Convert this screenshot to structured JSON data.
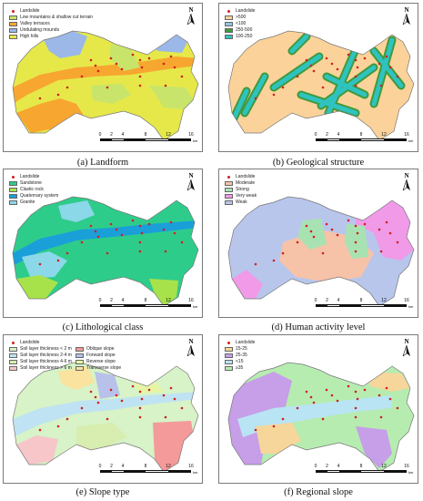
{
  "common": {
    "landslide_label": "Landslide",
    "north_label": "N",
    "scale_ticks": [
      "0",
      "2",
      "4",
      "8",
      "12",
      "16"
    ],
    "scale_unit": "km"
  },
  "panels": [
    {
      "caption": "(a) Landform",
      "legend": [
        {
          "label": "Low mountains & shallow cut terrain",
          "color": "#c8e46a"
        },
        {
          "label": "Valley terraces",
          "color": "#f7a630"
        },
        {
          "label": "Undulating mounds",
          "color": "#9bb8e8"
        },
        {
          "label": "High hills",
          "color": "#e6e84a"
        }
      ],
      "base_color": "#e6e84a"
    },
    {
      "caption": "(b) Geological structure",
      "legend": [
        {
          "label": ">500",
          "color": "#fbd29a"
        },
        {
          "label": "<100",
          "color": "#8ec6e2"
        },
        {
          "label": "250-500",
          "color": "#3f9a3c"
        },
        {
          "label": "100-250",
          "color": "#2fc3c0"
        }
      ],
      "base_color": "#fbd29a"
    },
    {
      "caption": "(c) Lithological class",
      "legend": [
        {
          "label": "Sandstone",
          "color": "#2ecc8a"
        },
        {
          "label": "Clastic rock",
          "color": "#a8e24a"
        },
        {
          "label": "Quaternary system",
          "color": "#1a9fd9"
        },
        {
          "label": "Granite",
          "color": "#8ad8e8"
        }
      ],
      "base_color": "#2ecc8a"
    },
    {
      "caption": "(d) Human activity level",
      "legend": [
        {
          "label": "Moderate",
          "color": "#f6c2a8"
        },
        {
          "label": "Strong",
          "color": "#a8e2b2"
        },
        {
          "label": "Very weak",
          "color": "#f09ae8"
        },
        {
          "label": "Weak",
          "color": "#b8c6ec"
        }
      ],
      "base_color": "#b8c6ec"
    },
    {
      "caption": "(e) Slope type",
      "legend": [
        {
          "label": "Soil layer thickness < 2 m",
          "color": "#d7f3c7"
        },
        {
          "label": "Oblique slope",
          "color": "#f49a9a"
        },
        {
          "label": "Soil layer thickness 2-4 m",
          "color": "#bfe3f2"
        },
        {
          "label": "Forward slope",
          "color": "#b7c1ea"
        },
        {
          "label": "Soil layer thickness 4-6 m",
          "color": "#d8edb0"
        },
        {
          "label": "Reverse slope",
          "color": "#e6f4a6"
        },
        {
          "label": "Soil layer thickness > 6 m",
          "color": "#f6c6c9"
        },
        {
          "label": "Transverse slope",
          "color": "#f9e39e"
        }
      ],
      "base_color": "#d7f3c7"
    },
    {
      "caption": "(f) Regional slope",
      "legend": [
        {
          "label": "15-25",
          "color": "#f6d69a"
        },
        {
          "label": "25-35",
          "color": "#c79ee8"
        },
        {
          "label": "<15",
          "color": "#b8e4f4"
        },
        {
          "label": "≥35",
          "color": "#b6ecb0"
        }
      ],
      "base_color": "#b6ecb0"
    }
  ]
}
